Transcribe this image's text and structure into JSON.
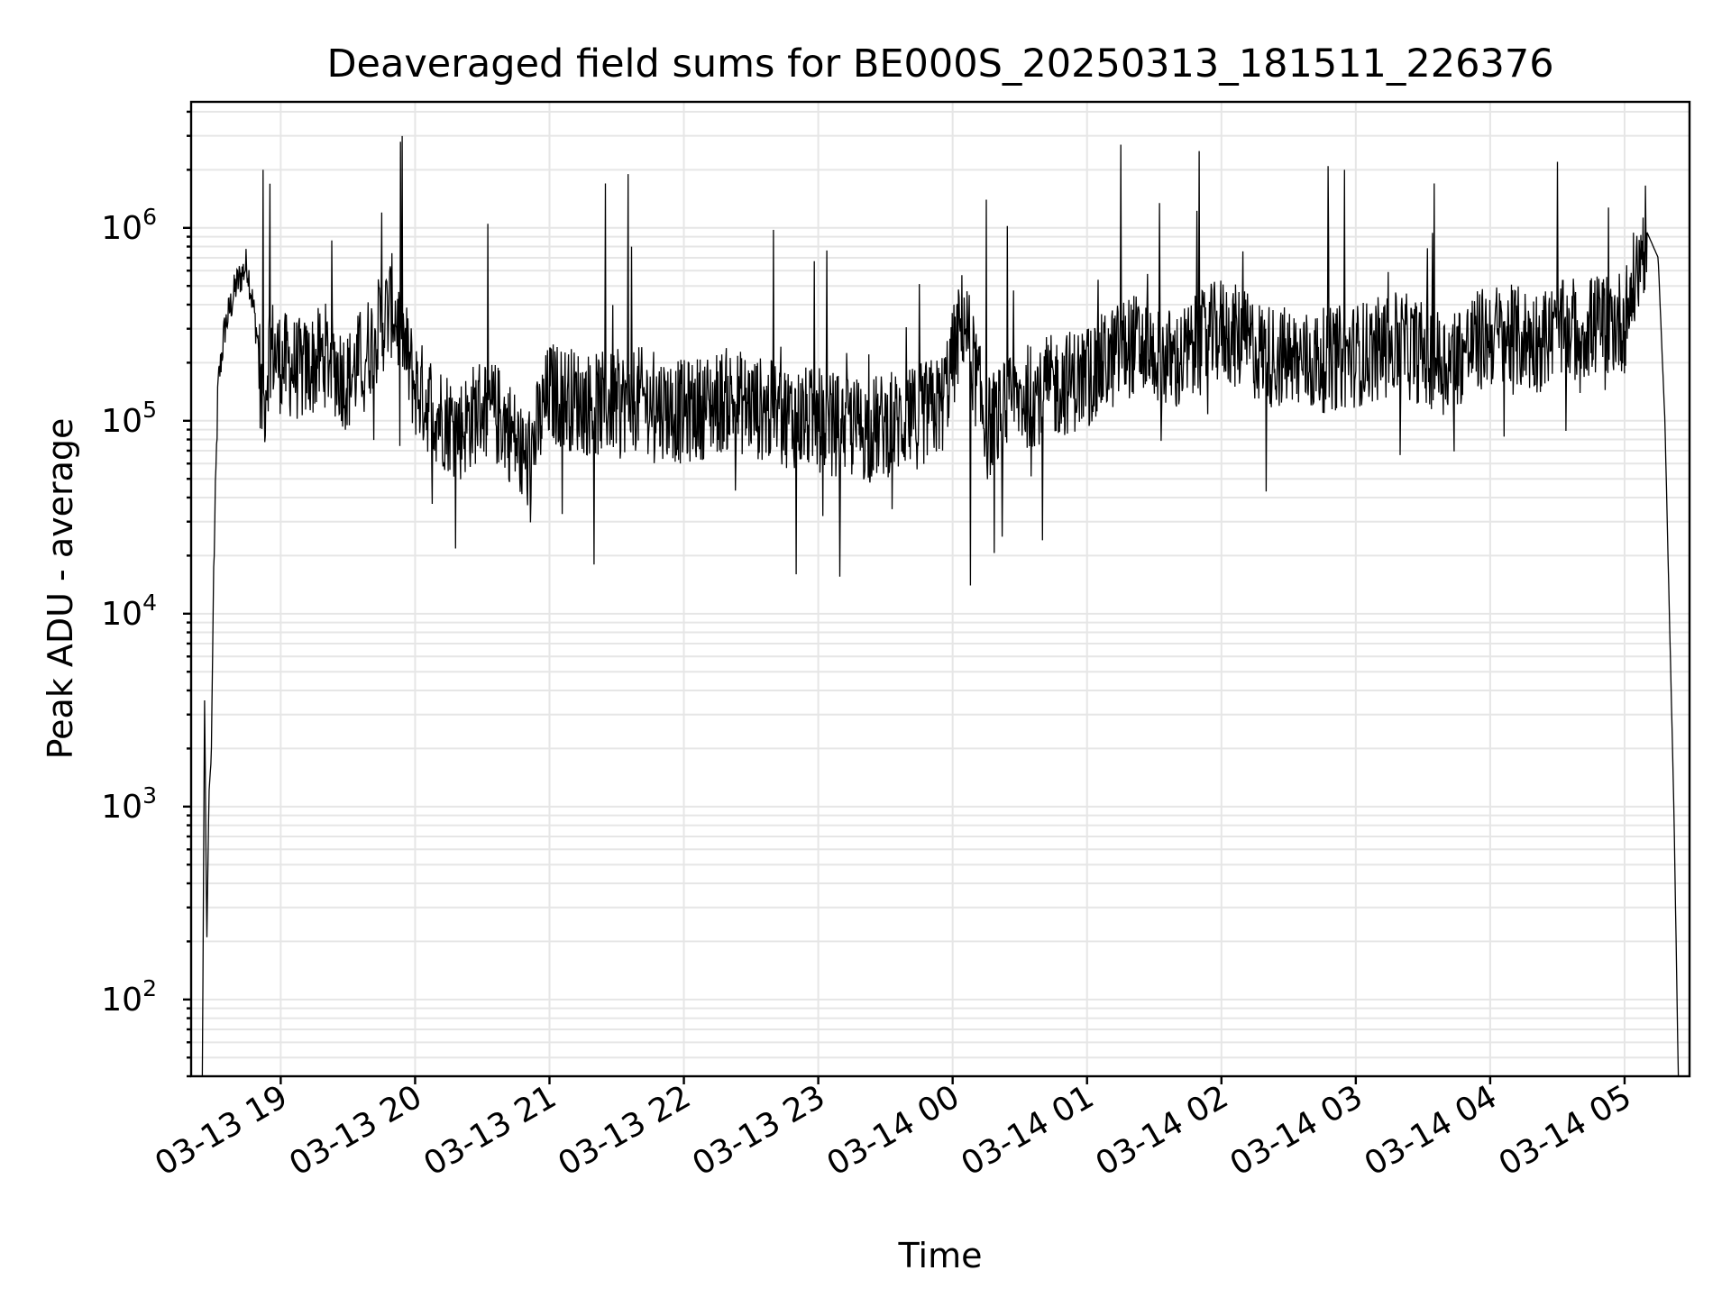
{
  "chart_data": {
    "type": "line",
    "title": "Deaveraged field sums for BE000S_20250313_181511_226376",
    "xlabel": "Time",
    "ylabel": "Peak ADU - average",
    "yscale": "log",
    "grid": true,
    "grid_minor": true,
    "line_color": "#000000",
    "xlim": [
      "2025-03-13 18:20",
      "2025-03-14 05:29"
    ],
    "ylim": [
      40,
      4500000
    ],
    "x_ticks": [
      {
        "value": "2025-03-13 19:00",
        "label": "03-13 19"
      },
      {
        "value": "2025-03-13 20:00",
        "label": "03-13 20"
      },
      {
        "value": "2025-03-13 21:00",
        "label": "03-13 21"
      },
      {
        "value": "2025-03-13 22:00",
        "label": "03-13 22"
      },
      {
        "value": "2025-03-13 23:00",
        "label": "03-13 23"
      },
      {
        "value": "2025-03-14 00:00",
        "label": "03-14 00"
      },
      {
        "value": "2025-03-14 01:00",
        "label": "03-14 01"
      },
      {
        "value": "2025-03-14 02:00",
        "label": "03-14 02"
      },
      {
        "value": "2025-03-14 03:00",
        "label": "03-14 03"
      },
      {
        "value": "2025-03-14 04:00",
        "label": "03-14 04"
      },
      {
        "value": "2025-03-14 05:00",
        "label": "03-14 05"
      }
    ],
    "y_ticks": [
      {
        "value": 100,
        "base": "10",
        "exp": "2"
      },
      {
        "value": 1000,
        "base": "10",
        "exp": "3"
      },
      {
        "value": 10000,
        "base": "10",
        "exp": "4"
      },
      {
        "value": 100000,
        "base": "10",
        "exp": "5"
      },
      {
        "value": 1000000,
        "base": "10",
        "exp": "6"
      }
    ],
    "series": [
      {
        "x": [
          "2025-03-13 18:25",
          "2025-03-13 18:26",
          "2025-03-13 18:27",
          "2025-03-13 18:28",
          "2025-03-13 18:29",
          "2025-03-13 18:30",
          "2025-03-13 18:32",
          "2025-03-13 18:35",
          "2025-03-13 18:40",
          "2025-03-13 18:45",
          "2025-03-13 18:50",
          "2025-03-13 18:52",
          "2025-03-13 18:55",
          "2025-03-13 19:00",
          "2025-03-13 19:10",
          "2025-03-13 19:20",
          "2025-03-13 19:30",
          "2025-03-13 19:40",
          "2025-03-13 19:50",
          "2025-03-13 20:00",
          "2025-03-13 20:10",
          "2025-03-13 20:20",
          "2025-03-13 20:30",
          "2025-03-13 20:40",
          "2025-03-13 20:50",
          "2025-03-13 21:00",
          "2025-03-13 21:20",
          "2025-03-13 21:40",
          "2025-03-13 22:00",
          "2025-03-13 22:20",
          "2025-03-13 22:40",
          "2025-03-13 23:00",
          "2025-03-13 23:20",
          "2025-03-13 23:40",
          "2025-03-13 23:55",
          "2025-03-14 00:05",
          "2025-03-14 00:15",
          "2025-03-14 00:30",
          "2025-03-14 00:45",
          "2025-03-14 01:00",
          "2025-03-14 01:20",
          "2025-03-14 01:40",
          "2025-03-14 02:00",
          "2025-03-14 02:20",
          "2025-03-14 02:40",
          "2025-03-14 03:00",
          "2025-03-14 03:20",
          "2025-03-14 03:40",
          "2025-03-14 04:00",
          "2025-03-14 04:20",
          "2025-03-14 04:40",
          "2025-03-14 05:00",
          "2025-03-14 05:10",
          "2025-03-14 05:15",
          "2025-03-14 05:18",
          "2025-03-14 05:20",
          "2025-03-14 05:22",
          "2025-03-14 05:24"
        ],
        "y": [
          40,
          3700,
          200,
          1200,
          1800,
          15000,
          150000,
          300000,
          500000,
          650000,
          250000,
          100000,
          250000,
          200000,
          180000,
          220000,
          160000,
          250000,
          400000,
          150000,
          110000,
          90000,
          120000,
          100000,
          60000,
          140000,
          120000,
          130000,
          110000,
          130000,
          110000,
          100000,
          90000,
          100000,
          120000,
          350000,
          90000,
          130000,
          150000,
          170000,
          250000,
          200000,
          300000,
          220000,
          200000,
          220000,
          250000,
          200000,
          280000,
          260000,
          300000,
          330000,
          950000,
          700000,
          100000,
          10000,
          1000,
          40
        ],
        "peaks_high": [
          {
            "x": "2025-03-13 18:52",
            "y": 2000000
          },
          {
            "x": "2025-03-13 19:45",
            "y": 1200000
          },
          {
            "x": "2025-03-13 21:25",
            "y": 1700000
          },
          {
            "x": "2025-03-13 21:35",
            "y": 1900000
          },
          {
            "x": "2025-03-14 00:15",
            "y": 1400000
          },
          {
            "x": "2025-03-14 01:15",
            "y": 2700000
          },
          {
            "x": "2025-03-14 01:50",
            "y": 2500000
          },
          {
            "x": "2025-03-14 02:55",
            "y": 2000000
          },
          {
            "x": "2025-03-14 03:35",
            "y": 1700000
          },
          {
            "x": "2025-03-14 04:30",
            "y": 2200000
          }
        ],
        "peaks_low": [
          {
            "x": "2025-03-13 21:20",
            "y": 18000
          },
          {
            "x": "2025-03-13 22:50",
            "y": 16000
          },
          {
            "x": "2025-03-14 00:08",
            "y": 14000
          },
          {
            "x": "2025-03-14 00:40",
            "y": 24000
          },
          {
            "x": "2025-03-14 02:20",
            "y": 43000
          }
        ]
      }
    ]
  }
}
